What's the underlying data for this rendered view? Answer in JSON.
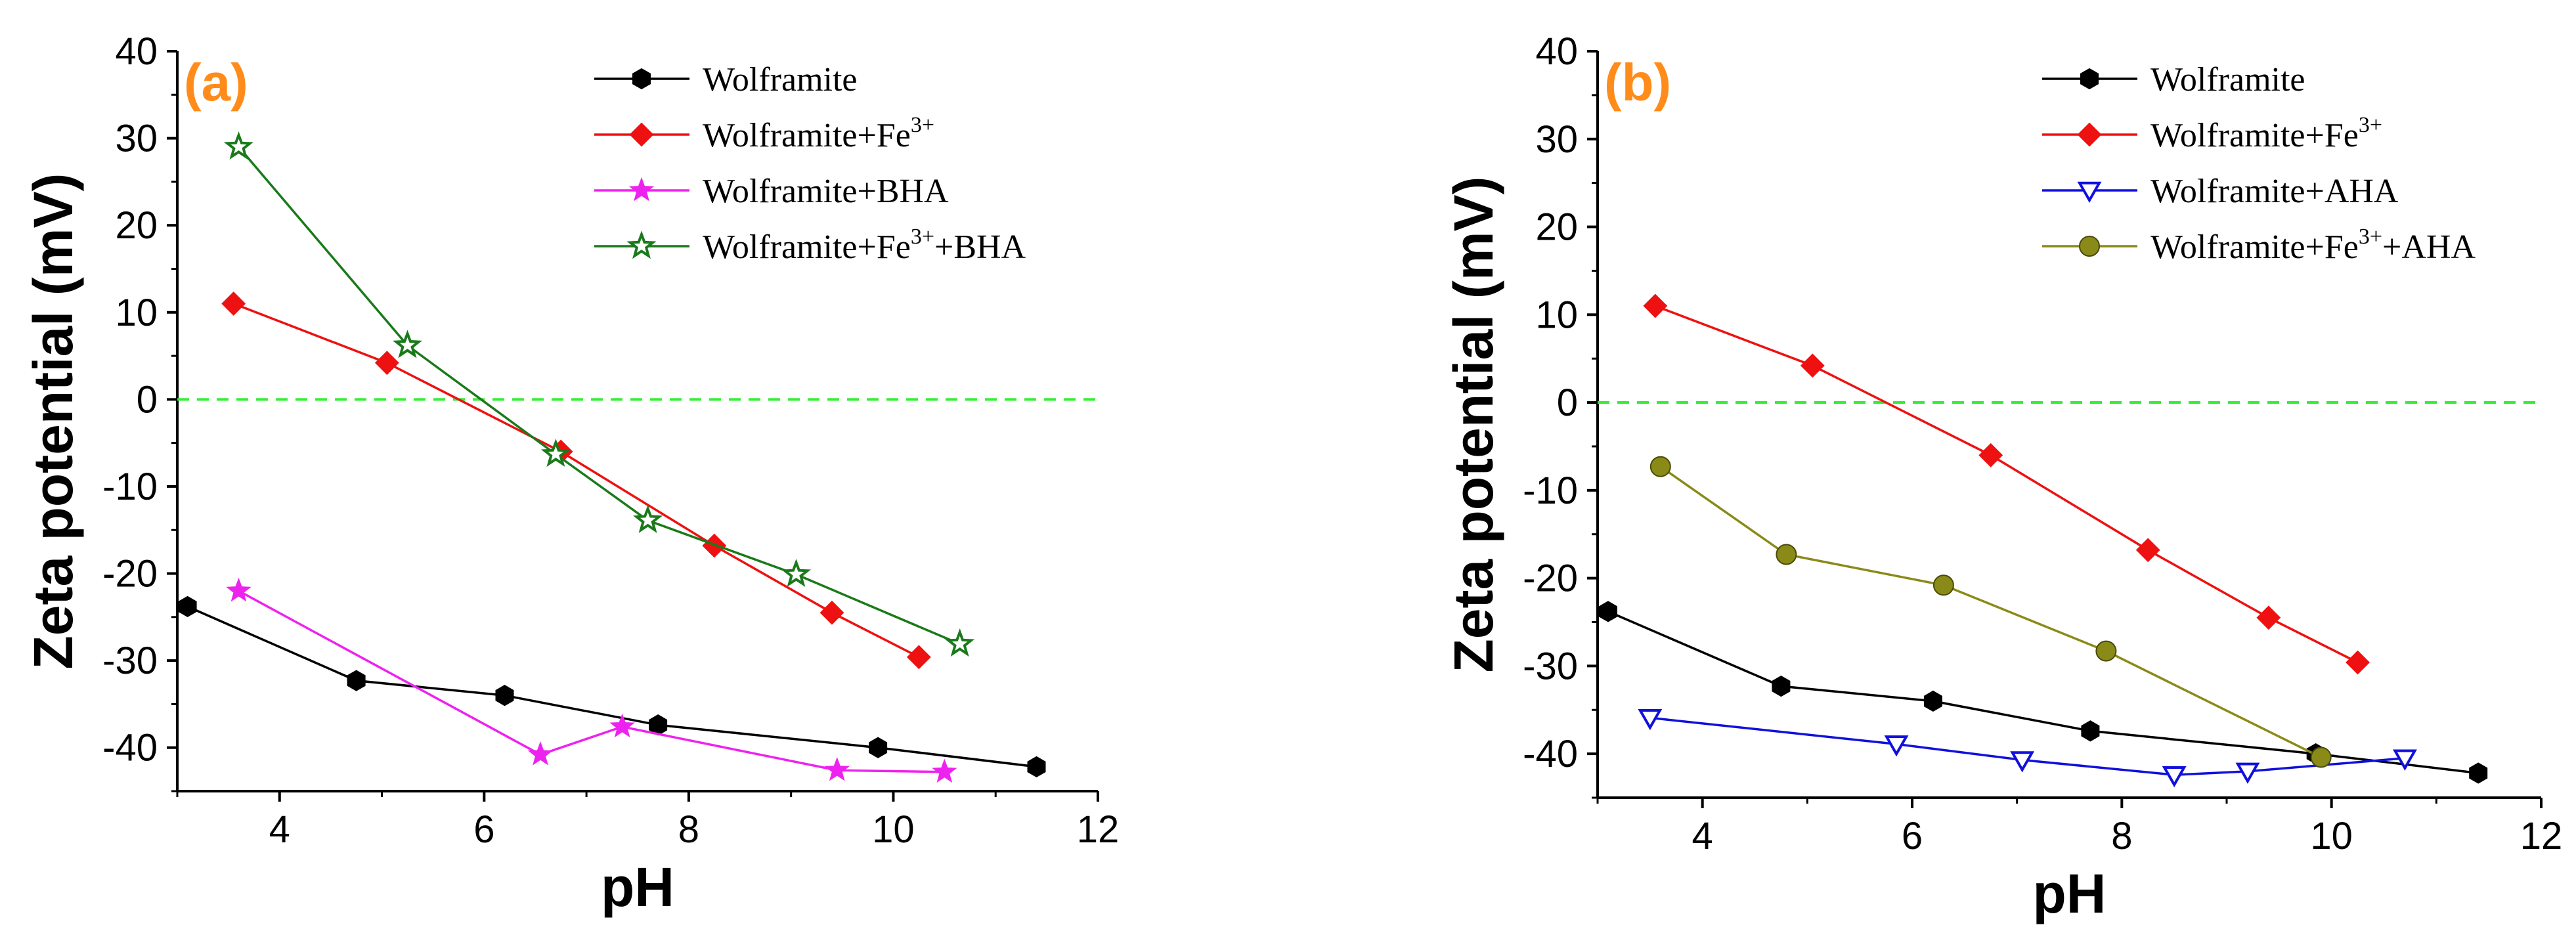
{
  "chart_data": [
    {
      "type": "line",
      "panel_label": "(a)",
      "xlabel": "pH",
      "ylabel": "Zeta potential (mV)",
      "xlim": [
        3,
        12
      ],
      "ylim": [
        -45,
        40
      ],
      "xticks": [
        4,
        6,
        8,
        10,
        12
      ],
      "yticks": [
        -40,
        -30,
        -20,
        -10,
        0,
        10,
        20,
        30,
        40
      ],
      "xtick_labels": [
        "4",
        "6",
        "8",
        "10",
        "12"
      ],
      "ytick_labels": [
        "-40",
        "-30",
        "-20",
        "-10",
        "0",
        "10",
        "20",
        "30",
        "40"
      ],
      "reference_line": {
        "y": 0,
        "color": "#33ee33",
        "style": "dashed"
      },
      "legend_position": "top-right",
      "series": [
        {
          "name": "Wolframite",
          "base": "Wolframite",
          "sup": "",
          "suffix": "",
          "color": "#000000",
          "marker": "hexagon",
          "x": [
            3.1,
            4.75,
            6.2,
            7.7,
            9.85,
            11.4
          ],
          "y": [
            -23.8,
            -32.3,
            -34,
            -37.4,
            -40,
            -42.2
          ]
        },
        {
          "name": "Wolframite+Fe3+",
          "base": "Wolframite+Fe",
          "sup": "3+",
          "suffix": "",
          "color": "#ee1111",
          "marker": "diamond",
          "x": [
            3.55,
            5.05,
            6.75,
            8.25,
            9.4,
            10.25
          ],
          "y": [
            11,
            4.2,
            -6,
            -16.8,
            -24.5,
            -29.6
          ]
        },
        {
          "name": "Wolframite+BHA",
          "base": "Wolframite+BHA",
          "sup": "",
          "suffix": "",
          "color": "#ee22ee",
          "marker": "star-filled",
          "x": [
            3.6,
            6.55,
            7.35,
            9.45,
            10.5
          ],
          "y": [
            -22,
            -40.8,
            -37.6,
            -42.6,
            -42.8
          ]
        },
        {
          "name": "Wolframite+Fe3++BHA",
          "base": "Wolframite+Fe",
          "sup": "3+",
          "suffix": "+BHA",
          "color": "#1a7a1a",
          "marker": "star-open",
          "x": [
            3.6,
            5.25,
            6.7,
            7.6,
            9.05,
            10.65
          ],
          "y": [
            29,
            6.2,
            -6.3,
            -13.9,
            -20.1,
            -28.1
          ]
        }
      ]
    },
    {
      "type": "line",
      "panel_label": "(b)",
      "xlabel": "pH",
      "ylabel": "Zeta potential (mV)",
      "xlim": [
        3,
        12
      ],
      "ylim": [
        -45,
        40
      ],
      "xticks": [
        4,
        6,
        8,
        10,
        12
      ],
      "yticks": [
        -40,
        -30,
        -20,
        -10,
        0,
        10,
        20,
        30,
        40
      ],
      "xtick_labels": [
        "4",
        "6",
        "8",
        "10",
        "12"
      ],
      "ytick_labels": [
        "-40",
        "-30",
        "-20",
        "-10",
        "0",
        "10",
        "20",
        "30",
        "40"
      ],
      "reference_line": {
        "y": 0,
        "color": "#33ee33",
        "style": "dashed"
      },
      "legend_position": "top-right",
      "series": [
        {
          "name": "Wolframite",
          "base": "Wolframite",
          "sup": "",
          "suffix": "",
          "color": "#000000",
          "marker": "hexagon",
          "x": [
            3.1,
            4.75,
            6.2,
            7.7,
            9.85,
            11.4
          ],
          "y": [
            -23.8,
            -32.3,
            -34,
            -37.4,
            -40,
            -42.2
          ]
        },
        {
          "name": "Wolframite+Fe3+",
          "base": "Wolframite+Fe",
          "sup": "3+",
          "suffix": "",
          "color": "#ee1111",
          "marker": "diamond",
          "x": [
            3.55,
            5.05,
            6.75,
            8.25,
            9.4,
            10.25
          ],
          "y": [
            11,
            4.2,
            -6,
            -16.8,
            -24.5,
            -29.6
          ]
        },
        {
          "name": "Wolframite+AHA",
          "base": "Wolframite+AHA",
          "sup": "",
          "suffix": "",
          "color": "#1010dd",
          "marker": "triangle-down-open",
          "x": [
            3.5,
            5.85,
            7.05,
            8.5,
            9.2,
            10.7
          ],
          "y": [
            -35.9,
            -38.9,
            -40.7,
            -42.4,
            -42,
            -40.5
          ]
        },
        {
          "name": "Wolframite+Fe3++AHA",
          "base": "Wolframite+Fe",
          "sup": "3+",
          "suffix": "+AHA",
          "color": "#8a8a18",
          "marker": "circle",
          "x": [
            3.6,
            4.8,
            6.3,
            7.85,
            9.9
          ],
          "y": [
            -7.3,
            -17.3,
            -20.8,
            -28.3,
            -40.4
          ]
        }
      ]
    }
  ]
}
